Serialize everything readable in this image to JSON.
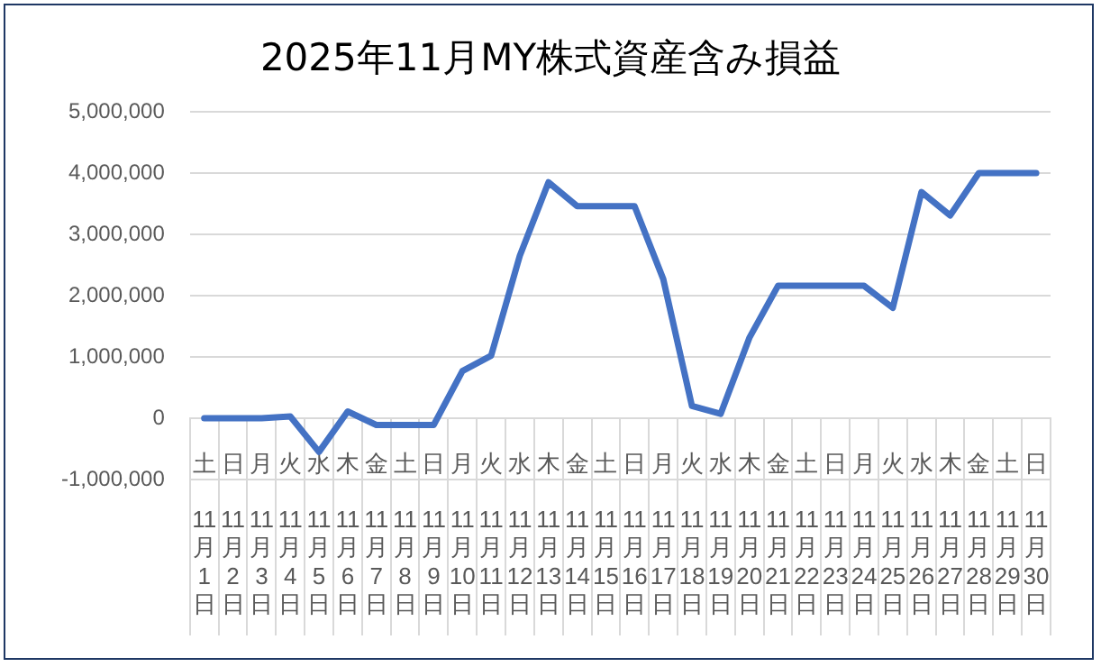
{
  "chart_data": {
    "type": "line",
    "title": "2025年11月MY株式資産含み損益",
    "categories": [
      "土\n11月1日",
      "日\n11月2日",
      "月\n11月3日",
      "火\n11月4日",
      "水\n11月5日",
      "木\n11月6日",
      "金\n11月7日",
      "土\n11月8日",
      "日\n11月9日",
      "月\n11月10日",
      "火\n11月11日",
      "水\n11月12日",
      "木\n11月13日",
      "金\n11月14日",
      "土\n11月15日",
      "日\n11月16日",
      "月\n11月17日",
      "火\n11月18日",
      "水\n11月19日",
      "木\n11月20日",
      "金\n11月21日",
      "土\n11月22日",
      "日\n11月23日",
      "月\n11月24日",
      "火\n11月25日",
      "水\n11月26日",
      "木\n11月27日",
      "金\n11月28日",
      "土\n11月29日",
      "日\n11月30日"
    ],
    "series": [
      {
        "color": "#4472c4",
        "values": [
          0,
          0,
          0,
          30000,
          -550000,
          110000,
          -110000,
          -110000,
          -110000,
          770000,
          1020000,
          2650000,
          3850000,
          3460000,
          3460000,
          3460000,
          2270000,
          200000,
          70000,
          1310000,
          2160000,
          2160000,
          2160000,
          2160000,
          1800000,
          3690000,
          3310000,
          4000000,
          4000000,
          4000000
        ]
      }
    ],
    "ylim": [
      -1000000,
      5000000
    ],
    "yticks": [
      {
        "value": -1000000,
        "label": "-1,000,000"
      },
      0,
      {
        "value": 1000000,
        "label": "1,000,000"
      },
      {
        "value": 2000000,
        "label": "2,000,000"
      },
      {
        "value": 3000000,
        "label": "3,000,000"
      },
      {
        "value": 4000000,
        "label": "4,000,000"
      },
      {
        "value": 5000000,
        "label": "5,000,000"
      }
    ],
    "grid": "y",
    "legend": false,
    "marker": "none",
    "line_style": "solid"
  }
}
